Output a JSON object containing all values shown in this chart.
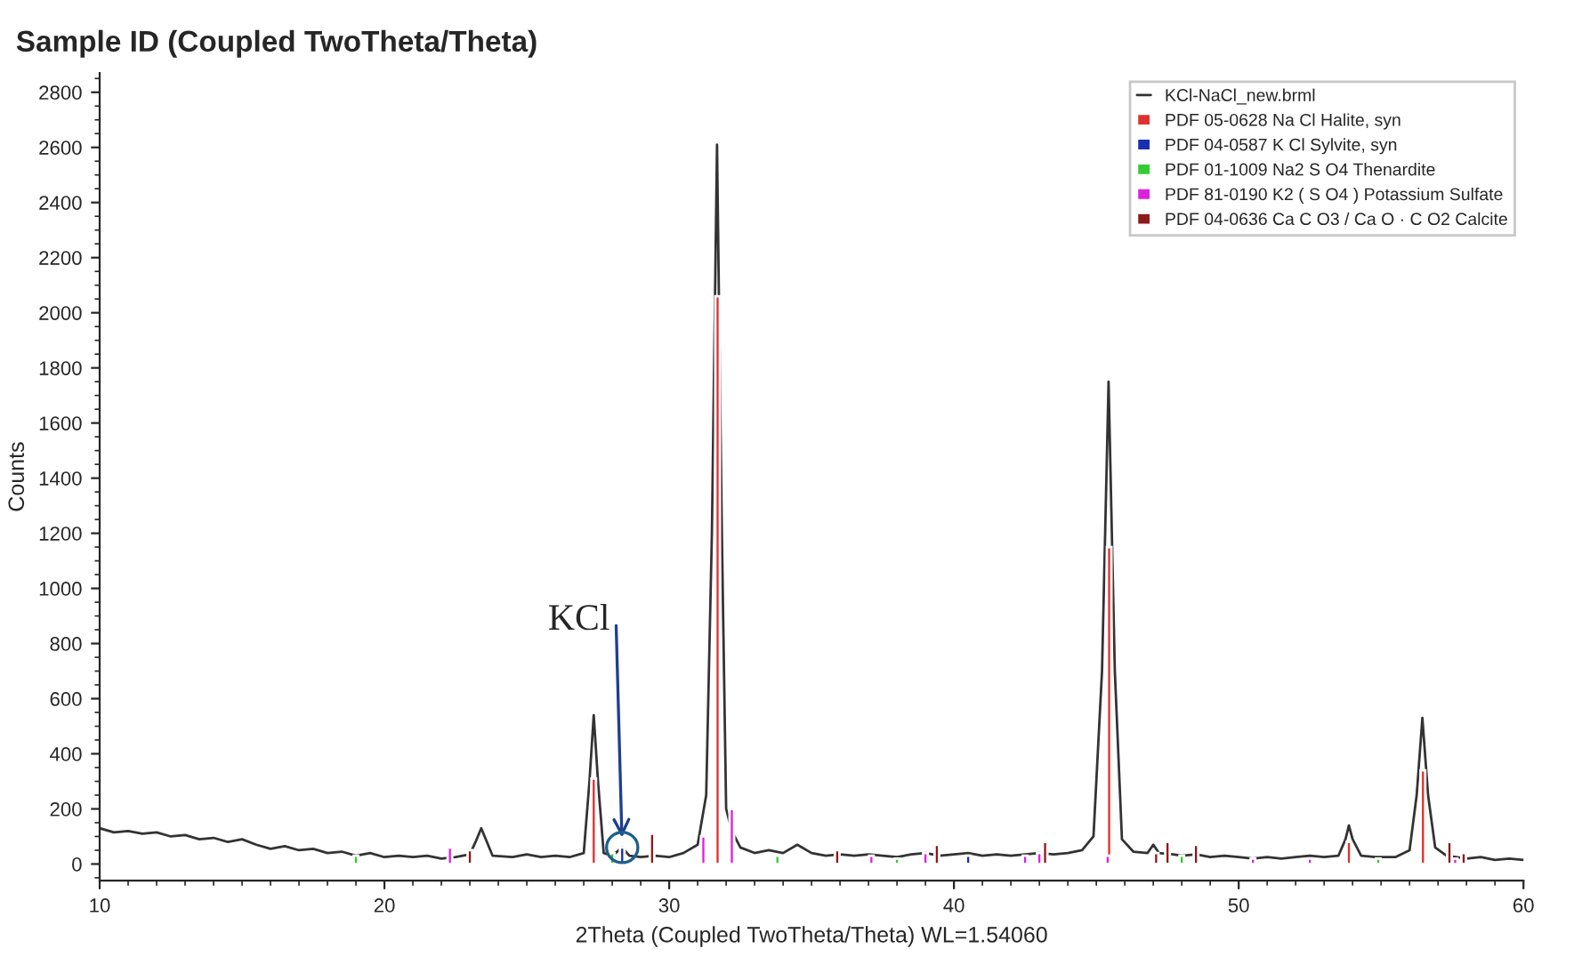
{
  "chart_data": {
    "type": "line",
    "title": "Sample ID (Coupled TwoTheta/Theta)",
    "xlabel": "2Theta (Coupled TwoTheta/Theta) WL=1.54060",
    "ylabel": "Counts",
    "xlim": [
      10,
      60
    ],
    "xticks": [
      10,
      20,
      30,
      40,
      50,
      60
    ],
    "ylim": [
      -60,
      2870
    ],
    "yticks": [
      0,
      200,
      400,
      600,
      800,
      1000,
      1200,
      1400,
      1600,
      1800,
      2000,
      2200,
      2400,
      2600,
      2800
    ],
    "grid": false,
    "legend": "top right",
    "marker": "none",
    "line_style": "solid",
    "annotations": [
      {
        "text": "KCl",
        "x": 28.35,
        "y": 60
      }
    ],
    "series": [
      {
        "name": "KCl-NaCl_new.brml",
        "color": "#333333",
        "x": [
          10,
          10.5,
          11,
          11.5,
          12,
          12.5,
          13,
          13.5,
          14,
          14.5,
          15,
          15.5,
          16,
          16.5,
          17,
          17.5,
          18,
          18.5,
          19,
          19.5,
          20,
          20.5,
          21,
          21.5,
          22,
          22.5,
          23.0,
          23.2,
          23.4,
          23.6,
          23.8,
          24.5,
          25,
          25.5,
          26,
          26.5,
          27.0,
          27.2,
          27.35,
          27.5,
          27.7,
          28.0,
          28.35,
          28.6,
          29.0,
          29.5,
          30,
          30.5,
          31.0,
          31.3,
          31.5,
          31.68,
          31.85,
          32.0,
          32.2,
          32.5,
          33,
          33.5,
          34,
          34.5,
          35,
          35.5,
          36,
          36.5,
          37,
          37.5,
          38,
          38.5,
          39,
          39.5,
          40,
          40.5,
          41,
          41.5,
          42,
          42.5,
          43,
          43.5,
          44,
          44.5,
          44.9,
          45.2,
          45.43,
          45.65,
          45.9,
          46.3,
          46.8,
          47.0,
          47.2,
          47.7,
          48,
          48.5,
          49,
          49.5,
          50,
          50.5,
          51,
          51.5,
          52,
          52.5,
          53,
          53.5,
          53.75,
          53.87,
          54.0,
          54.3,
          54.8,
          55.5,
          56.0,
          56.25,
          56.45,
          56.65,
          56.9,
          57.3,
          58,
          58.5,
          59,
          59.5,
          60
        ],
        "values": [
          130,
          115,
          120,
          110,
          115,
          100,
          105,
          90,
          95,
          80,
          90,
          70,
          55,
          65,
          50,
          55,
          40,
          45,
          30,
          40,
          25,
          30,
          25,
          30,
          20,
          25,
          35,
          80,
          130,
          80,
          30,
          25,
          35,
          25,
          30,
          25,
          40,
          300,
          540,
          300,
          40,
          30,
          60,
          30,
          25,
          30,
          25,
          40,
          70,
          250,
          1200,
          2610,
          1200,
          200,
          120,
          60,
          40,
          50,
          40,
          70,
          40,
          30,
          35,
          30,
          35,
          30,
          25,
          35,
          40,
          30,
          35,
          40,
          30,
          35,
          30,
          35,
          40,
          35,
          40,
          50,
          100,
          700,
          1750,
          700,
          90,
          45,
          40,
          70,
          40,
          35,
          30,
          35,
          25,
          30,
          25,
          20,
          25,
          20,
          25,
          30,
          25,
          30,
          90,
          140,
          90,
          30,
          25,
          25,
          50,
          250,
          530,
          250,
          60,
          30,
          20,
          25,
          15,
          20,
          15
        ]
      },
      {
        "name": "PDF 05-0628 Na Cl Halite, syn",
        "type": "bar",
        "color": "#e03030",
        "x": [
          27.35,
          31.7,
          45.45,
          53.87,
          56.47
        ],
        "values": [
          310,
          2060,
          1150,
          80,
          340
        ]
      },
      {
        "name": "PDF 04-0587 K Cl Sylvite, syn",
        "type": "bar",
        "color": "#1a2eb0",
        "x": [
          28.35,
          40.5
        ],
        "values": [
          60,
          30
        ]
      },
      {
        "name": "PDF 01-1009 Na2 S O4 Thenardite",
        "type": "bar",
        "color": "#33cc33",
        "x": [
          19.0,
          28.0,
          33.8,
          38.0,
          48.0,
          54.9
        ],
        "values": [
          30,
          40,
          30,
          20,
          30,
          20
        ]
      },
      {
        "name": "PDF 81-0190 K2 ( S O4 ) Potassium Sulfate",
        "type": "bar",
        "color": "#dd22dd",
        "x": [
          22.3,
          31.2,
          32.2,
          37.1,
          39.0,
          42.5,
          43.0,
          45.4,
          50.5,
          52.5,
          57.6
        ],
        "values": [
          60,
          100,
          200,
          30,
          40,
          30,
          40,
          30,
          20,
          20,
          20
        ]
      },
      {
        "name": "PDF 04-0636 Ca C O3 / Ca O · C O2 Calcite",
        "type": "bar",
        "color": "#8b1a1a",
        "x": [
          23.0,
          29.4,
          35.9,
          39.4,
          43.2,
          47.1,
          47.5,
          48.5,
          57.4,
          57.9
        ],
        "values": [
          50,
          110,
          50,
          70,
          80,
          40,
          80,
          70,
          80,
          40
        ]
      }
    ]
  }
}
